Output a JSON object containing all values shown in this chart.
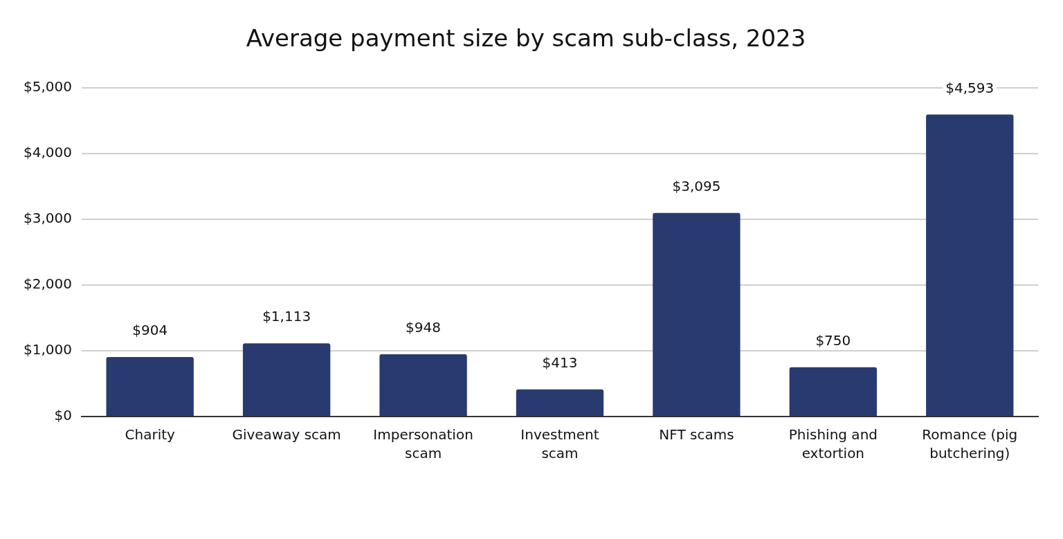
{
  "chart_data": {
    "type": "bar",
    "title": "Average payment size by scam sub-class, 2023",
    "categories": [
      "Charity",
      "Giveaway scam",
      "Impersonation scam",
      "Investment scam",
      "NFT scams",
      "Phishing and extortion",
      "Romance (pig butchering)"
    ],
    "values": [
      904,
      1113,
      948,
      413,
      3095,
      750,
      4593
    ],
    "value_labels": [
      "$904",
      "$1,113",
      "$948",
      "$413",
      "$3,095",
      "$750",
      "$4,593"
    ],
    "color": "#293a70",
    "ylim": [
      0,
      5000
    ],
    "yticks": [
      {
        "value": 0,
        "label": "$0"
      },
      {
        "value": 1000,
        "label": "$1,000"
      },
      {
        "value": 2000,
        "label": "$2,000"
      },
      {
        "value": 3000,
        "label": "$3,000"
      },
      {
        "value": 4000,
        "label": "$4,000"
      },
      {
        "value": 5000,
        "label": "$5,000"
      }
    ],
    "grid": "y"
  }
}
